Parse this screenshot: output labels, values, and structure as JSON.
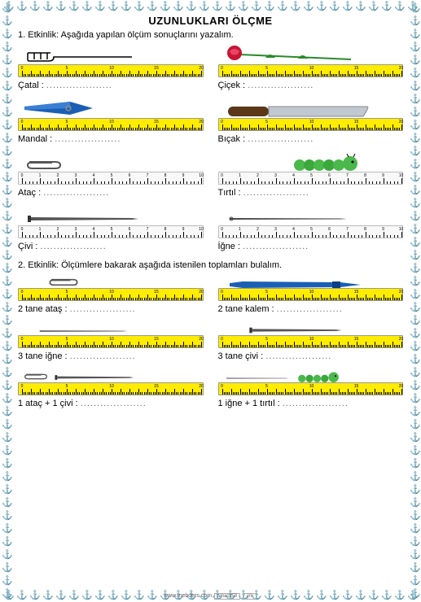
{
  "title": "UZUNLUKLARI  ÖLÇME",
  "activity1": "1.  Etkinlik: Aşağıda yapılan ölçüm sonuçlarını yazalım.",
  "activity2": "2. Etkinlik: Ölçümlere bakarak aşağıda istenilen toplamları bulalım.",
  "labels": {
    "catal": "Çatal : ",
    "cicek": "Çiçek : ",
    "mandal": "Mandal : ",
    "bicak": "Bıçak : ",
    "atac": "Ataç : ",
    "tirtil": "Tırtıl : ",
    "civi": "Çivi : ",
    "igne": "İğne : ",
    "atac2": "2 tane ataş : ",
    "kalem2": "2 tane kalem : ",
    "igne3": "3 tane iğne : ",
    "civi3": "3 tane çivi : ",
    "atacCivi": "1 ataç + 1 çivi : ",
    "igneTirtil": "1 iğne + 1 tırtıl : "
  },
  "dots": "....................",
  "footer": {
    "site": "www.mebders.com",
    "tag1": "smacit58",
    "tag2": "ym"
  },
  "colors": {
    "rulerYellow": "#ffec00",
    "rulerWhite": "#f8f8f8",
    "anchor": "#2060c0",
    "rose": "#c91434",
    "roseStem": "#2a8a2a",
    "clipBlue": "#1a5fb4",
    "knifeHandle": "#5a3818",
    "knifeBlade": "#c0c8d0",
    "caterpillar": "#4bb84b",
    "pen": "#1a5fb4"
  },
  "rulerLong": {
    "max": 20,
    "majors": [
      0,
      5,
      10,
      15,
      20
    ]
  },
  "rulerShort": {
    "max": 10,
    "majors": [
      0,
      1,
      2,
      3,
      4,
      5,
      6,
      7,
      8,
      9,
      10
    ]
  }
}
